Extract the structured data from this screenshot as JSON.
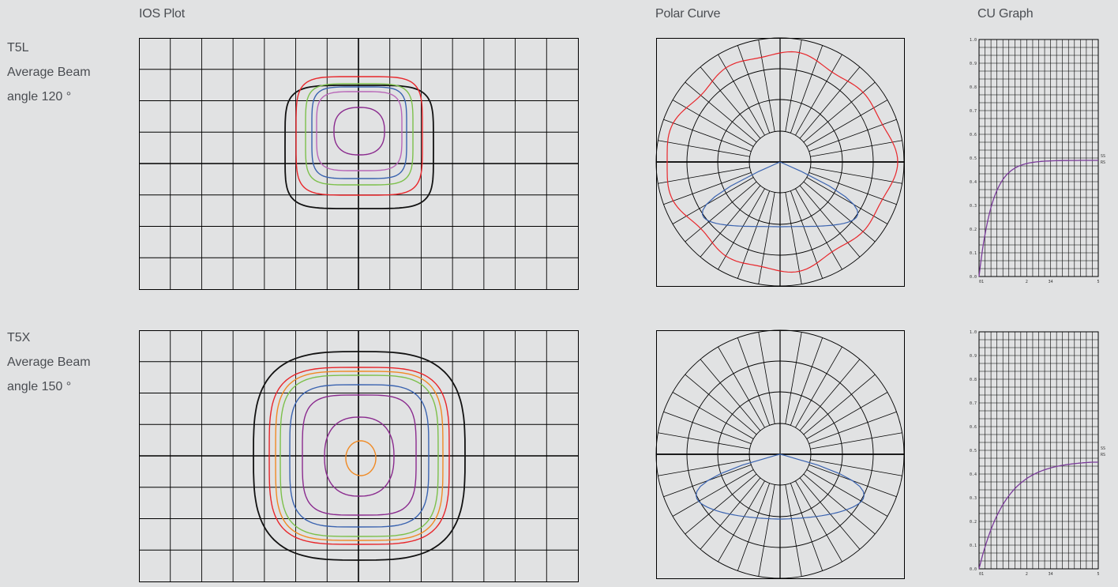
{
  "headers": {
    "ios": "IOS Plot",
    "polar": "Polar Curve",
    "cu": "CU Graph"
  },
  "rows": [
    {
      "name": "T5L",
      "line1": "Average Beam",
      "line2": "angle 120 °",
      "cu_curve_max": 0.49,
      "cu_y_ticks": [
        "0.0",
        "0.1",
        "0.2",
        "0.3",
        "0.4",
        "0.5",
        "0.6",
        "0.7",
        "0.8",
        "0.9",
        "1.0"
      ],
      "cu_x_ticks": [
        "01",
        "2",
        "34",
        "5"
      ],
      "cu_right_labels": [
        "SS",
        "RS"
      ]
    },
    {
      "name": "T5X",
      "line1": "Average Beam",
      "line2": "angle 150 °",
      "cu_curve_max": 0.45,
      "cu_y_ticks": [
        "0.0",
        "0.1",
        "0.2",
        "0.3",
        "0.4",
        "0.5",
        "0.6",
        "0.7",
        "0.8",
        "0.9",
        "1.0"
      ],
      "cu_x_ticks": [
        "01",
        "2",
        "34",
        "5"
      ],
      "cu_right_labels": [
        "SS",
        "RS"
      ]
    }
  ],
  "colors": {
    "background": "#e1e2e3",
    "grid": "#000000",
    "iso_black": "#111111",
    "iso_red": "#e8262b",
    "iso_green": "#7cc04b",
    "iso_blue": "#3a63b0",
    "iso_purple": "#8a2a8e",
    "iso_pink": "#b866b8",
    "iso_orange": "#f08a24",
    "polar_red": "#e8262b",
    "polar_blue": "#3a63b0",
    "cu_curve": "#7a3a9a"
  },
  "chart_data": [
    {
      "type": "contour",
      "title": "IOS Plot",
      "row": "T5L",
      "contours": [
        "black",
        "red",
        "green",
        "blue",
        "pink",
        "purple"
      ]
    },
    {
      "type": "polar",
      "title": "Polar Curve",
      "row": "T5L",
      "series": [
        {
          "color": "red"
        },
        {
          "color": "blue"
        }
      ]
    },
    {
      "type": "line",
      "title": "CU Graph",
      "row": "T5L",
      "ylim": [
        0,
        1.0
      ],
      "y_ticks": [
        0,
        0.1,
        0.2,
        0.3,
        0.4,
        0.5,
        0.6,
        0.7,
        0.8,
        0.9,
        1.0
      ],
      "x_ticks": [
        "01",
        "2",
        "34",
        "5"
      ],
      "plateau": 0.49
    },
    {
      "type": "contour",
      "title": "",
      "row": "T5X",
      "contours": [
        "black",
        "red",
        "orange",
        "green",
        "blue",
        "purple",
        "purple",
        "orange"
      ]
    },
    {
      "type": "polar",
      "title": "",
      "row": "T5X",
      "series": [
        {
          "color": "blue"
        }
      ]
    },
    {
      "type": "line",
      "title": "",
      "row": "T5X",
      "ylim": [
        0,
        1.0
      ],
      "y_ticks": [
        0,
        0.1,
        0.2,
        0.3,
        0.4,
        0.5,
        0.6,
        0.7,
        0.8,
        0.9,
        1.0
      ],
      "x_ticks": [
        "01",
        "2",
        "34",
        "5"
      ],
      "plateau": 0.45
    }
  ]
}
